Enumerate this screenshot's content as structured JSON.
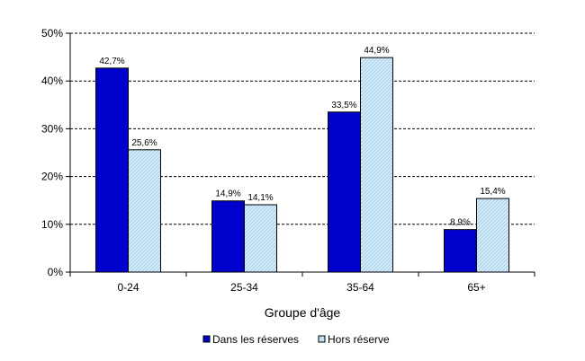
{
  "chart_data": {
    "type": "bar",
    "categories": [
      "0-24",
      "25-34",
      "35-64",
      "65+"
    ],
    "series": [
      {
        "name": "Dans les réserves",
        "values": [
          42.7,
          14.9,
          33.5,
          8.9
        ],
        "labels": [
          "42,7%",
          "14,9%",
          "33,5%",
          "8,9%"
        ],
        "color": "#0000CC"
      },
      {
        "name": "Hors réserve",
        "values": [
          25.6,
          14.1,
          44.9,
          15.4
        ],
        "labels": [
          "25,6%",
          "14,1%",
          "44,9%",
          "15,4%"
        ],
        "color": "#CCE6F5",
        "pattern": "diagonal-hatch"
      }
    ],
    "xlabel": "Groupe d'âge",
    "ylim": [
      0,
      50
    ],
    "yticks": [
      0,
      10,
      20,
      30,
      40,
      50
    ],
    "ytick_labels": [
      "0%",
      "10%",
      "20%",
      "30%",
      "40%",
      "50%"
    ],
    "grid": "horizontal-dashed",
    "legend_position": "bottom-center"
  }
}
